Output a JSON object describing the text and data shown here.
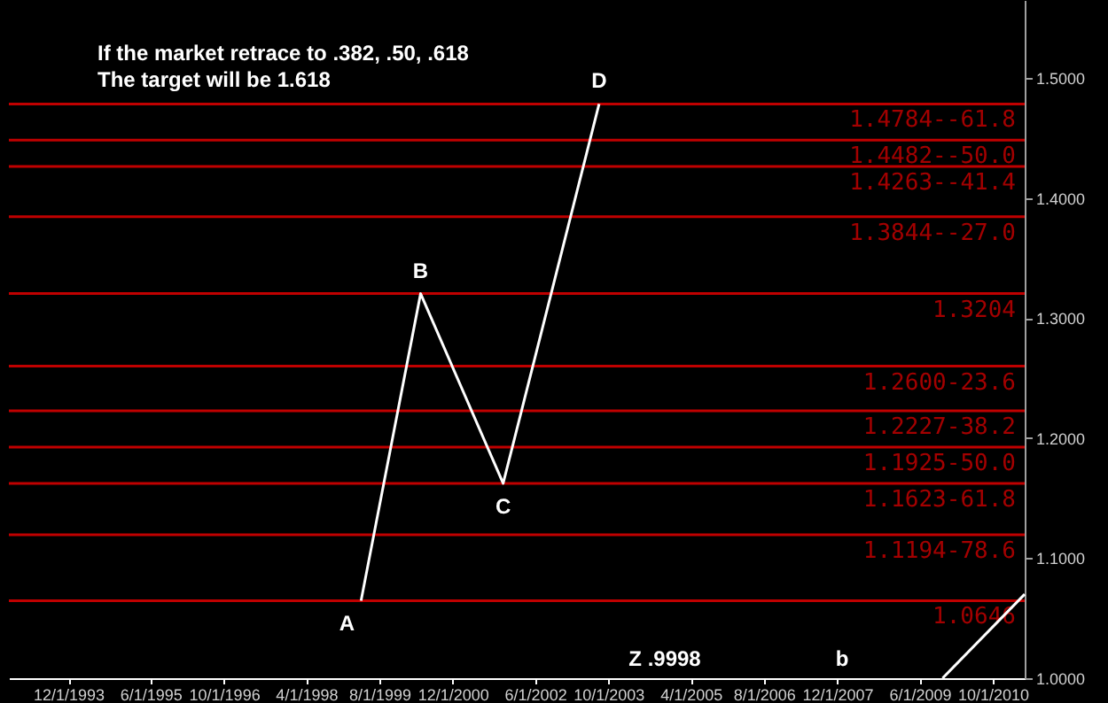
{
  "chart_data": {
    "type": "line",
    "title": "If the market retrace to .382, .50, .618",
    "subtitle": "The target will be 1.618",
    "series": [
      {
        "color": "#ffffff",
        "x": [
          "1999-04",
          "2000-05",
          "2001-11",
          "2003-08"
        ],
        "values": [
          1.0646,
          1.3204,
          1.1623,
          1.4784
        ]
      },
      {
        "color": "#ffffff",
        "x": [
          "2009-11",
          "2011-05"
        ],
        "values": [
          1.0,
          1.07
        ]
      }
    ],
    "xlim": [
      "1992-11",
      "2011-05"
    ],
    "xticks": [
      {
        "value": "1993-12-01",
        "label": "12/1/1993"
      },
      {
        "value": "1995-06-01",
        "label": "6/1/1995"
      },
      {
        "value": "1996-10-01",
        "label": "10/1/1996"
      },
      {
        "value": "1998-04-01",
        "label": "4/1/1998"
      },
      {
        "value": "1999-08-01",
        "label": "8/1/1999"
      },
      {
        "value": "2000-12-01",
        "label": "12/1/2000"
      },
      {
        "value": "2002-06-01",
        "label": "6/1/2002"
      },
      {
        "value": "2003-10-01",
        "label": "10/1/2003"
      },
      {
        "value": "2005-04-01",
        "label": "4/1/2005"
      },
      {
        "value": "2006-08-01",
        "label": "8/1/2006"
      },
      {
        "value": "2007-12-01",
        "label": "12/1/2007"
      },
      {
        "value": "2009-06-01",
        "label": "6/1/2009"
      },
      {
        "value": "2010-10-01",
        "label": "10/1/2010"
      }
    ],
    "ylim": [
      1.0,
      1.565
    ],
    "yticks": [
      {
        "value": 1.0,
        "label": "1.0000"
      },
      {
        "value": 1.1,
        "label": "1.1000"
      },
      {
        "value": 1.2,
        "label": "1.2000"
      },
      {
        "value": 1.3,
        "label": "1.3000"
      },
      {
        "value": 1.4,
        "label": "1.4000"
      },
      {
        "value": 1.5,
        "label": "1.5000"
      }
    ],
    "ref_lines": [
      {
        "axis": "y",
        "value": 1.4784,
        "label": "1.4784--61.8",
        "color": "#c00000"
      },
      {
        "axis": "y",
        "value": 1.4482,
        "label": "1.4482--50.0",
        "color": "#c00000"
      },
      {
        "axis": "y",
        "value": 1.4263,
        "label": "1.4263--41.4",
        "color": "#c00000"
      },
      {
        "axis": "y",
        "value": 1.3844,
        "label": "1.3844--27.0",
        "color": "#c00000"
      },
      {
        "axis": "y",
        "value": 1.3204,
        "label": "1.3204",
        "color": "#c00000"
      },
      {
        "axis": "y",
        "value": 1.26,
        "label": "1.2600-23.6",
        "color": "#c00000"
      },
      {
        "axis": "y",
        "value": 1.2227,
        "label": "1.2227-38.2",
        "color": "#c00000"
      },
      {
        "axis": "y",
        "value": 1.1925,
        "label": "1.1925-50.0",
        "color": "#c00000"
      },
      {
        "axis": "y",
        "value": 1.1623,
        "label": "1.1623-61.8",
        "color": "#c00000"
      },
      {
        "axis": "y",
        "value": 1.1194,
        "label": "1.1194-78.6",
        "color": "#c00000"
      },
      {
        "axis": "y",
        "value": 1.0646,
        "label": "1.0646",
        "color": "#c00000"
      }
    ],
    "annotations": [
      {
        "text": "A",
        "x": "1999-04",
        "y": 1.0646
      },
      {
        "text": "B",
        "x": "2000-05",
        "y": 1.3204
      },
      {
        "text": "C",
        "x": "2001-11",
        "y": 1.1623
      },
      {
        "text": "D",
        "x": "2003-08",
        "y": 1.4784
      },
      "Z .9998",
      "b"
    ],
    "grid": false,
    "marker": "none",
    "line_style": "solid"
  }
}
